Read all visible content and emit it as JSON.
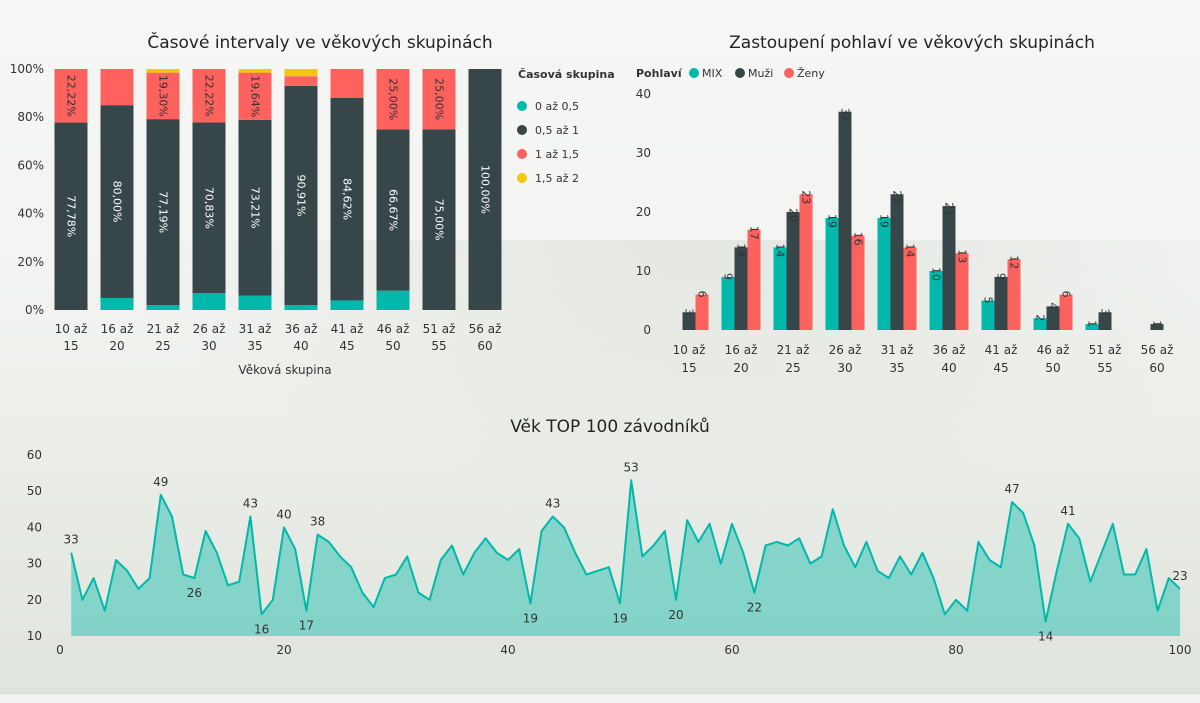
{
  "chart_data": [
    {
      "type": "bar",
      "stacked": "100%",
      "title": "Časové intervaly ve věkových skupinách",
      "xlabel": "Věková skupina",
      "ylabel": "",
      "ylim": [
        0,
        100
      ],
      "y_ticks": [
        "0%",
        "20%",
        "40%",
        "60%",
        "80%",
        "100%"
      ],
      "categories": [
        [
          "10 až",
          "15"
        ],
        [
          "16 až",
          "20"
        ],
        [
          "21 až",
          "25"
        ],
        [
          "26 až",
          "30"
        ],
        [
          "31 až",
          "35"
        ],
        [
          "36 až",
          "40"
        ],
        [
          "41 až",
          "45"
        ],
        [
          "46 až",
          "50"
        ],
        [
          "51 až",
          "55"
        ],
        [
          "56 až",
          "60"
        ]
      ],
      "legend_title": "Časová skupina",
      "legend_position": "right",
      "series": [
        {
          "name": "0 až 0,5",
          "color": "#01B8AA",
          "values": [
            0,
            5,
            2,
            7,
            6,
            2,
            4,
            8,
            0,
            0
          ],
          "labels": [
            "",
            "",
            "",
            "",
            "",
            "",
            "",
            "",
            "",
            ""
          ]
        },
        {
          "name": "0,5 až 1",
          "color": "#374649",
          "values": [
            77.78,
            80.0,
            77.19,
            70.83,
            73.21,
            90.91,
            84.62,
            66.67,
            75.0,
            100.0
          ],
          "labels": [
            "77,78%",
            "80,00%",
            "77,19%",
            "70,83%",
            "73,21%",
            "90,91%",
            "84,62%",
            "66,67%",
            "75,00%",
            "100,00%"
          ]
        },
        {
          "name": "1 až 1,5",
          "color": "#FD625E",
          "values": [
            22.22,
            15,
            19.3,
            22.22,
            19.64,
            4,
            12,
            25.0,
            25.0,
            0
          ],
          "labels": [
            "22,22%",
            "",
            "19,30%",
            "22,22%",
            "19,64%",
            "",
            "",
            "25,00%",
            "25,00%",
            ""
          ]
        },
        {
          "name": "1,5 až 2",
          "color": "#F2C80F",
          "values": [
            0,
            0,
            1.5,
            0,
            1.5,
            3,
            0,
            0,
            0,
            0
          ],
          "labels": [
            "",
            "",
            "",
            "",
            "",
            "",
            "",
            "",
            "",
            ""
          ]
        }
      ]
    },
    {
      "type": "bar",
      "title": "Zastoupení pohlaví ve věkových skupinách",
      "xlabel": "",
      "ylabel": "",
      "ylim": [
        0,
        40
      ],
      "y_ticks": [
        "0",
        "10",
        "20",
        "30",
        "40"
      ],
      "categories": [
        [
          "10 až",
          "15"
        ],
        [
          "16 až",
          "20"
        ],
        [
          "21 až",
          "25"
        ],
        [
          "26 až",
          "30"
        ],
        [
          "31 až",
          "35"
        ],
        [
          "36 až",
          "40"
        ],
        [
          "41 až",
          "45"
        ],
        [
          "46 až",
          "50"
        ],
        [
          "51 až",
          "55"
        ],
        [
          "56 až",
          "60"
        ]
      ],
      "legend_title": "Pohlaví",
      "legend_position": "top-left",
      "series": [
        {
          "name": "MIX",
          "color": "#01B8AA",
          "values": [
            null,
            9,
            14,
            19,
            19,
            10,
            5,
            2,
            1,
            null
          ]
        },
        {
          "name": "Muži",
          "color": "#374649",
          "values": [
            3,
            14,
            20,
            37,
            23,
            21,
            9,
            4,
            3,
            1
          ]
        },
        {
          "name": "Ženy",
          "color": "#FD625E",
          "values": [
            6,
            17,
            23,
            16,
            14,
            13,
            12,
            6,
            null,
            null
          ]
        }
      ]
    },
    {
      "type": "area",
      "title": "Věk TOP 100 závodníků",
      "xlabel": "",
      "ylabel": "",
      "xlim": [
        0,
        100
      ],
      "ylim": [
        10,
        60
      ],
      "x_ticks": [
        "0",
        "20",
        "40",
        "60",
        "80",
        "100"
      ],
      "y_ticks": [
        "10",
        "20",
        "30",
        "40",
        "50",
        "60"
      ],
      "color": "#01B8AA",
      "x": [
        1,
        2,
        3,
        4,
        5,
        6,
        7,
        8,
        9,
        10,
        11,
        12,
        13,
        14,
        15,
        16,
        17,
        18,
        19,
        20,
        21,
        22,
        23,
        24,
        25,
        26,
        27,
        28,
        29,
        30,
        31,
        32,
        33,
        34,
        35,
        36,
        37,
        38,
        39,
        40,
        41,
        42,
        43,
        44,
        45,
        46,
        47,
        48,
        49,
        50,
        51,
        52,
        53,
        54,
        55,
        56,
        57,
        58,
        59,
        60,
        61,
        62,
        63,
        64,
        65,
        66,
        67,
        68,
        69,
        70,
        71,
        72,
        73,
        74,
        75,
        76,
        77,
        78,
        79,
        80,
        81,
        82,
        83,
        84,
        85,
        86,
        87,
        88,
        89,
        90,
        91,
        92,
        93,
        94,
        95,
        96,
        97,
        98,
        99,
        100
      ],
      "y": [
        33,
        20,
        26,
        17,
        31,
        28,
        23,
        26,
        49,
        43,
        27,
        26,
        39,
        33,
        24,
        25,
        43,
        16,
        20,
        40,
        34,
        17,
        38,
        36,
        32,
        29,
        22,
        18,
        26,
        27,
        32,
        22,
        20,
        31,
        35,
        27,
        33,
        37,
        33,
        31,
        34,
        19,
        39,
        43,
        40,
        33,
        27,
        28,
        29,
        19,
        53,
        32,
        35,
        39,
        20,
        42,
        36,
        41,
        30,
        41,
        33,
        22,
        35,
        36,
        35,
        37,
        30,
        32,
        45,
        35,
        29,
        36,
        28,
        26,
        32,
        27,
        33,
        26,
        16,
        20,
        17,
        36,
        31,
        29,
        47,
        44,
        35,
        14,
        28,
        41,
        37,
        25,
        33,
        41,
        27,
        27,
        34,
        17,
        26,
        23
      ],
      "point_labels": [
        {
          "x": 1,
          "y": 33,
          "text": "33",
          "pos": "above"
        },
        {
          "x": 9,
          "y": 49,
          "text": "49",
          "pos": "above"
        },
        {
          "x": 12,
          "y": 26,
          "text": "26",
          "pos": "below"
        },
        {
          "x": 17,
          "y": 43,
          "text": "43",
          "pos": "above"
        },
        {
          "x": 18,
          "y": 16,
          "text": "16",
          "pos": "below"
        },
        {
          "x": 20,
          "y": 40,
          "text": "40",
          "pos": "above"
        },
        {
          "x": 22,
          "y": 17,
          "text": "17",
          "pos": "below"
        },
        {
          "x": 23,
          "y": 38,
          "text": "38",
          "pos": "above"
        },
        {
          "x": 42,
          "y": 19,
          "text": "19",
          "pos": "below"
        },
        {
          "x": 44,
          "y": 43,
          "text": "43",
          "pos": "above"
        },
        {
          "x": 50,
          "y": 19,
          "text": "19",
          "pos": "below"
        },
        {
          "x": 51,
          "y": 53,
          "text": "53",
          "pos": "above"
        },
        {
          "x": 55,
          "y": 20,
          "text": "20",
          "pos": "below"
        },
        {
          "x": 62,
          "y": 22,
          "text": "22",
          "pos": "below"
        },
        {
          "x": 85,
          "y": 47,
          "text": "47",
          "pos": "above"
        },
        {
          "x": 88,
          "y": 14,
          "text": "14",
          "pos": "below"
        },
        {
          "x": 90,
          "y": 41,
          "text": "41",
          "pos": "above"
        },
        {
          "x": 100,
          "y": 23,
          "text": "23",
          "pos": "above"
        }
      ]
    }
  ]
}
